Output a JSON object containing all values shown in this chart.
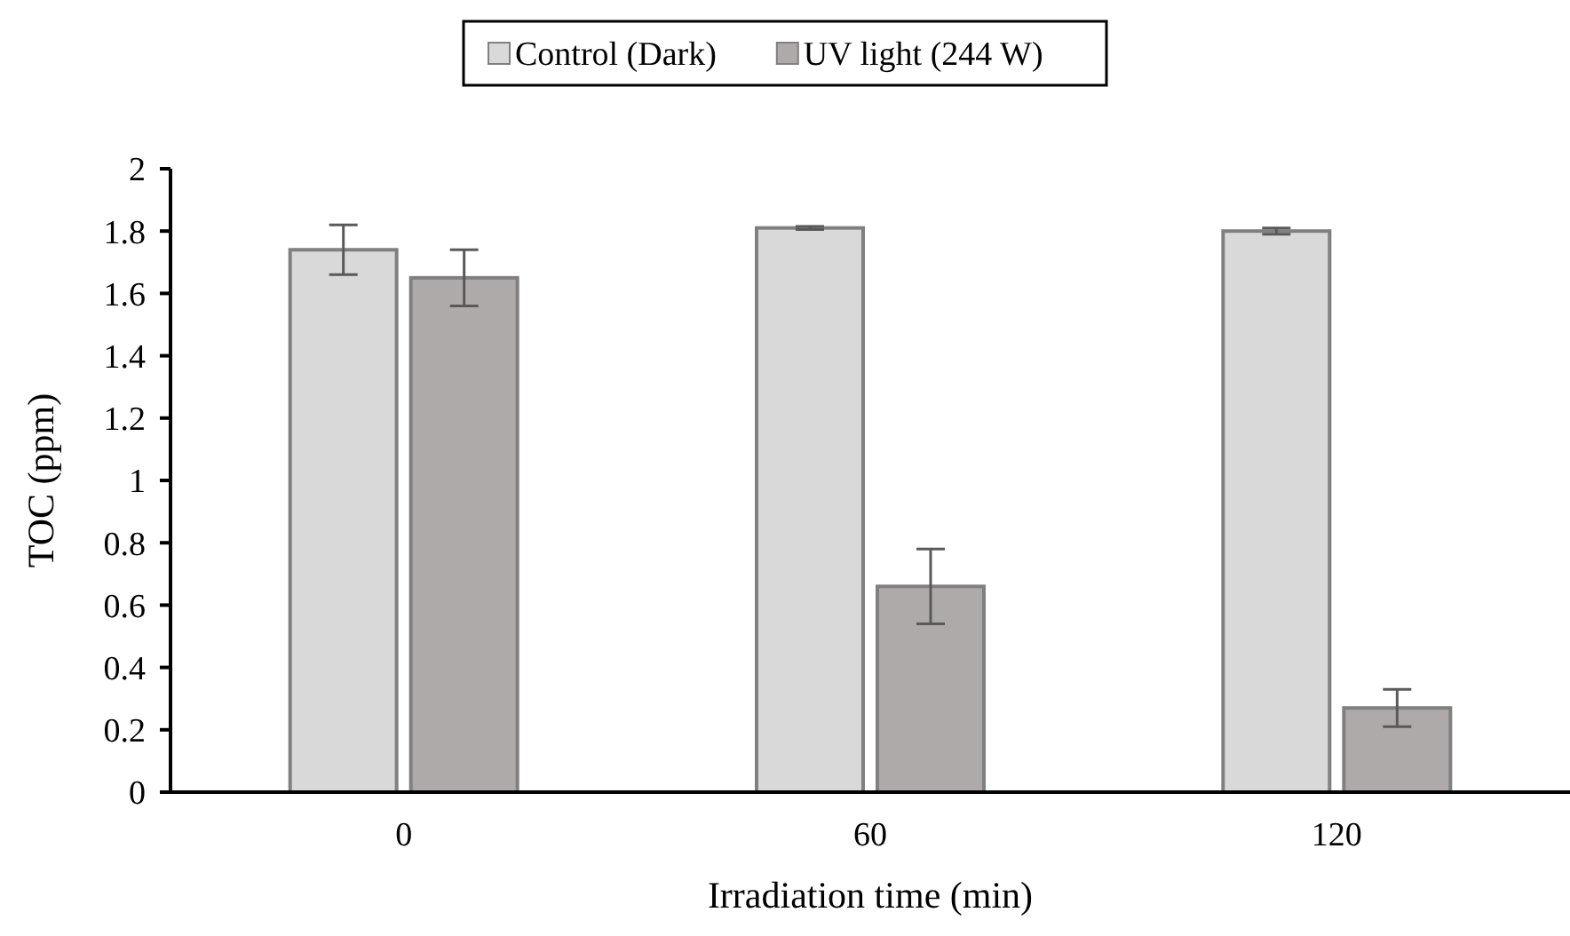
{
  "chart_data": {
    "type": "bar",
    "xlabel": "Irradiation time (min)",
    "ylabel": "TOC (ppm)",
    "categories": [
      "0",
      "60",
      "120"
    ],
    "series": [
      {
        "name": "Control (Dark)",
        "color": "#d9d9d9",
        "values": [
          1.74,
          1.81,
          1.8
        ],
        "errors": [
          0.08,
          0.005,
          0.01
        ]
      },
      {
        "name": "UV light (244 W)",
        "color": "#aeaaaa",
        "values": [
          1.65,
          0.66,
          0.27
        ],
        "errors": [
          0.09,
          0.12,
          0.06
        ]
      }
    ],
    "ylim": [
      0,
      2
    ],
    "yticks": [
      0,
      0.2,
      0.4,
      0.6,
      0.8,
      1,
      1.2,
      1.4,
      1.6,
      1.8,
      2
    ],
    "grid": false,
    "legend": "top"
  }
}
